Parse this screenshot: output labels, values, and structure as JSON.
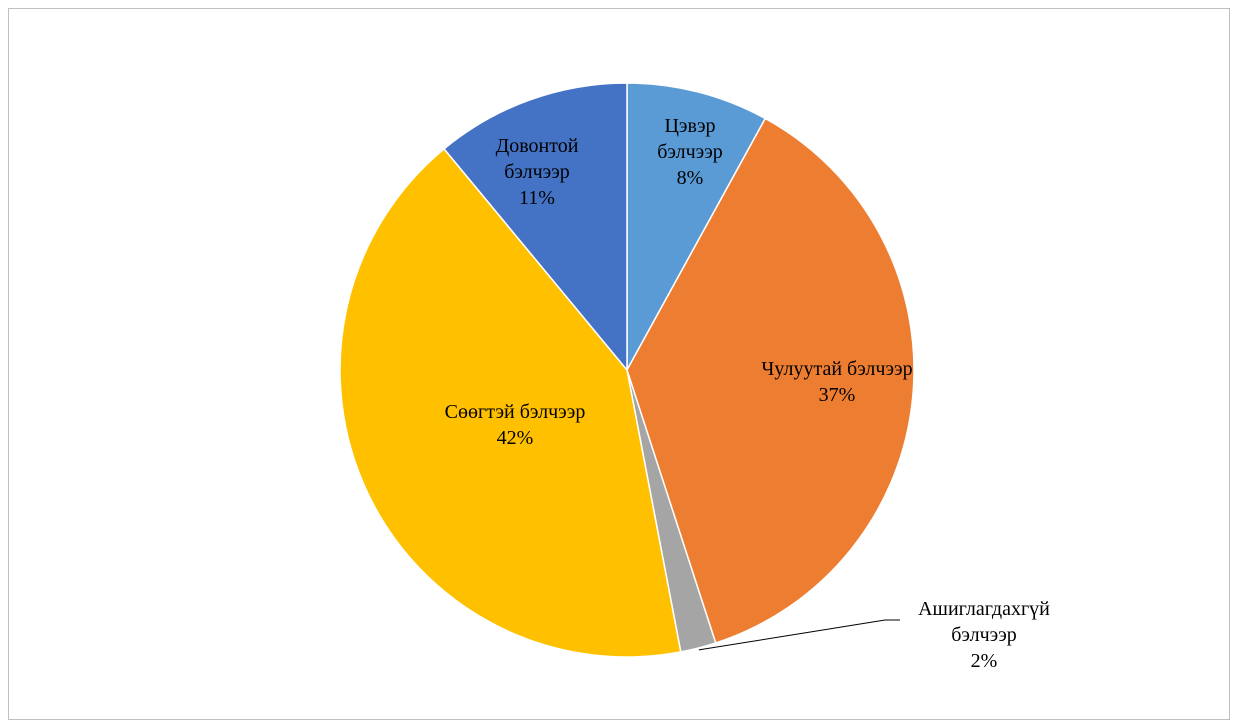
{
  "chart_data": {
    "type": "pie",
    "title": "",
    "slices": [
      {
        "name": "Цэвэр бэлчээр",
        "label_lines": [
          "Цэвэр",
          "бэлчээр",
          "8%"
        ],
        "value": 8,
        "color": "#5B9BD5"
      },
      {
        "name": "Чулуутай бэлчээр",
        "label_lines": [
          "Чулуутай бэлчээр",
          "37%"
        ],
        "value": 37,
        "color": "#ED7D31"
      },
      {
        "name": "Ашиглагдахгүй бэлчээр",
        "label_lines": [
          "Ашиглагдахгүй",
          "бэлчээр",
          "2%"
        ],
        "value": 2,
        "color": "#A5A5A5"
      },
      {
        "name": "Сөөгтэй бэлчээр",
        "label_lines": [
          "Сөөгтэй бэлчээр",
          "42%"
        ],
        "value": 42,
        "color": "#FFC000"
      },
      {
        "name": "Довонтой бэлчээр",
        "label_lines": [
          "Довонтой",
          "бэлчээр",
          "11%"
        ],
        "value": 11,
        "color": "#4472C4"
      }
    ],
    "legend": "none",
    "labels": "on-slice",
    "start_angle": "12 o'clock",
    "direction": "clockwise"
  }
}
